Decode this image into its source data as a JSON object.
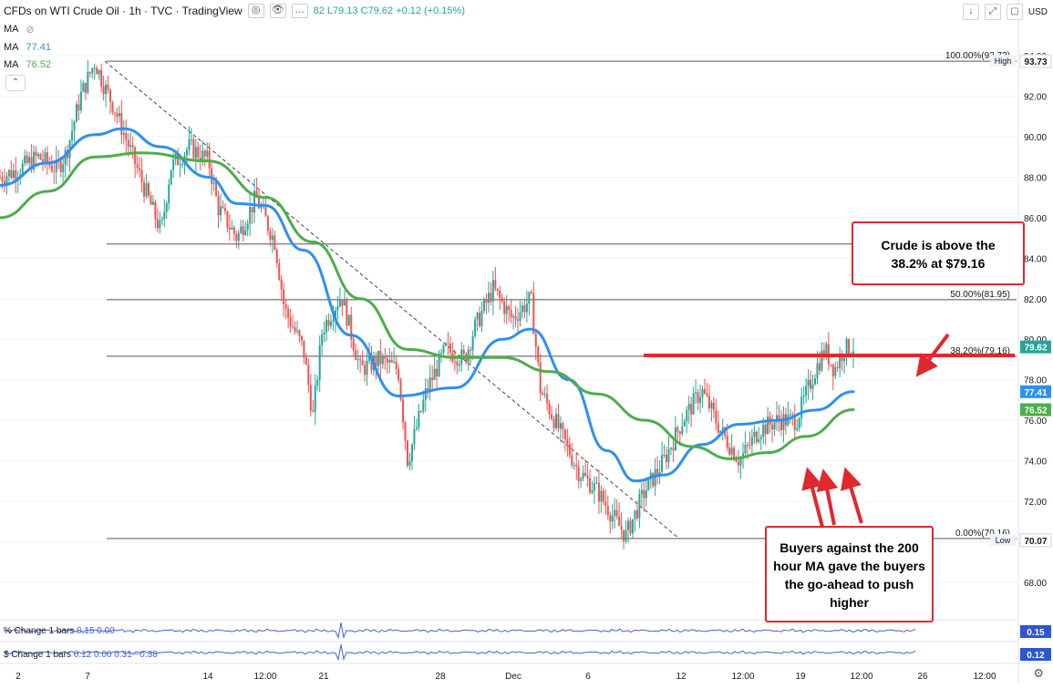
{
  "header": {
    "title": "CFDs on WTI Crude Oil · 1h · TVC · TradingView",
    "ohlc": "82  L79.13  C79.62  +0.12 (+0.15%)",
    "currency": "USD"
  },
  "legend": {
    "ma_label": "MA",
    "ma_blue_value": "77.41",
    "ma_green_value": "76.52"
  },
  "annotations": {
    "callout_top": "Crude is above the 38.2% at $79.16",
    "callout_bottom": "Buyers against the 200 hour MA gave the buyers the go-ahead to push higher",
    "fib_100": "100.00%(93.73)",
    "fib_50": "50.00%(81.95)",
    "fib_382": "38.20%(79.16)",
    "fib_0": "0.00%(70.16)",
    "high_tag": "High",
    "low_tag": "Low"
  },
  "indicators": {
    "pct_change_label": "% Change 1 bars",
    "pct_change_values": "0.15  0.00",
    "pct_change_value": "0.15",
    "dollar_change_label": "$ Change 1 bars",
    "dollar_change_values": "0.12  0.00  0.31  −0.38",
    "dollar_change_value": "0.12"
  },
  "colors": {
    "up": "#26a69a",
    "down": "#ef5350",
    "ma_fast": "#2e8ff0",
    "ma_slow": "#4cae4c",
    "annotation_red": "#e0282e",
    "axis_text": "#131722"
  },
  "chart_data": {
    "type": "candlestick",
    "symbol": "WTI Crude Oil",
    "interval": "1h",
    "ylim": [
      67.5,
      94.5
    ],
    "y_ticks": [
      "94.00",
      "92.00",
      "90.00",
      "88.00",
      "86.00",
      "84.00",
      "82.00",
      "80.00",
      "78.00",
      "76.00",
      "74.00",
      "72.00",
      "70.00",
      "68.00"
    ],
    "x_ticks": [
      "2",
      "7",
      "14",
      "12:00",
      "21",
      "28",
      "Dec",
      "6",
      "12",
      "12:00",
      "19",
      "12:00",
      "26",
      "12:00"
    ],
    "price_labels": {
      "high": "93.73",
      "last": "79.62",
      "ma_fast": "77.41",
      "ma_slow": "76.52",
      "low": "70.07"
    },
    "fib_levels": [
      {
        "label": "100.00%(93.73)",
        "price": 93.73
      },
      {
        "label": "",
        "price": 84.7
      },
      {
        "label": "50.00%(81.95)",
        "price": 81.95
      },
      {
        "label": "38.20%(79.16)",
        "price": 79.16
      },
      {
        "label": "0.00%(70.16)",
        "price": 70.16
      }
    ],
    "support_line_price": 79.2,
    "price_path": [
      [
        0,
        88.0
      ],
      [
        0.02,
        88.4
      ],
      [
        0.04,
        89.0
      ],
      [
        0.06,
        88.4
      ],
      [
        0.07,
        89.2
      ],
      [
        0.085,
        92.0
      ],
      [
        0.1,
        93.7
      ],
      [
        0.11,
        92.5
      ],
      [
        0.12,
        91.5
      ],
      [
        0.14,
        89.0
      ],
      [
        0.16,
        86.5
      ],
      [
        0.17,
        85.3
      ],
      [
        0.18,
        88.5
      ],
      [
        0.2,
        89.5
      ],
      [
        0.22,
        88.8
      ],
      [
        0.23,
        86.5
      ],
      [
        0.25,
        85.0
      ],
      [
        0.27,
        87.0
      ],
      [
        0.29,
        84.8
      ],
      [
        0.3,
        81.5
      ],
      [
        0.32,
        79.5
      ],
      [
        0.33,
        76.2
      ],
      [
        0.34,
        80.5
      ],
      [
        0.36,
        82.2
      ],
      [
        0.38,
        78.5
      ],
      [
        0.4,
        79.0
      ],
      [
        0.42,
        78.5
      ],
      [
        0.43,
        74.0
      ],
      [
        0.45,
        77.5
      ],
      [
        0.47,
        79.5
      ],
      [
        0.49,
        79.0
      ],
      [
        0.5,
        80.5
      ],
      [
        0.52,
        82.5
      ],
      [
        0.54,
        81.0
      ],
      [
        0.56,
        82.0
      ],
      [
        0.57,
        77.5
      ],
      [
        0.59,
        75.5
      ],
      [
        0.61,
        73.5
      ],
      [
        0.63,
        72.5
      ],
      [
        0.65,
        71.0
      ],
      [
        0.66,
        70.3
      ],
      [
        0.68,
        72.5
      ],
      [
        0.7,
        74.0
      ],
      [
        0.72,
        76.0
      ],
      [
        0.74,
        77.5
      ],
      [
        0.76,
        75.5
      ],
      [
        0.78,
        74.0
      ],
      [
        0.8,
        75.5
      ],
      [
        0.82,
        76.0
      ],
      [
        0.84,
        76.0
      ],
      [
        0.86,
        78.5
      ],
      [
        0.87,
        79.5
      ],
      [
        0.88,
        78.5
      ],
      [
        0.89,
        79.5
      ],
      [
        0.9,
        79.62
      ]
    ],
    "series": [
      {
        "name": "MA 77.41",
        "color": "#2e8ff0",
        "points": [
          [
            0,
            87.6
          ],
          [
            0.05,
            88.7
          ],
          [
            0.1,
            90.1
          ],
          [
            0.13,
            90.4
          ],
          [
            0.17,
            89.5
          ],
          [
            0.22,
            88.0
          ],
          [
            0.25,
            86.7
          ],
          [
            0.28,
            86.6
          ],
          [
            0.32,
            84.4
          ],
          [
            0.37,
            80.2
          ],
          [
            0.42,
            77.2
          ],
          [
            0.48,
            77.6
          ],
          [
            0.53,
            80.0
          ],
          [
            0.56,
            80.5
          ],
          [
            0.6,
            78.0
          ],
          [
            0.64,
            74.5
          ],
          [
            0.67,
            73.0
          ],
          [
            0.7,
            73.3
          ],
          [
            0.74,
            74.8
          ],
          [
            0.78,
            75.8
          ],
          [
            0.82,
            76.0
          ],
          [
            0.86,
            76.5
          ],
          [
            0.9,
            77.41
          ]
        ]
      },
      {
        "name": "MA 76.52",
        "color": "#4cae4c",
        "points": [
          [
            0,
            86.0
          ],
          [
            0.05,
            87.3
          ],
          [
            0.1,
            89.0
          ],
          [
            0.15,
            89.2
          ],
          [
            0.22,
            88.8
          ],
          [
            0.28,
            87.0
          ],
          [
            0.33,
            84.8
          ],
          [
            0.38,
            82.0
          ],
          [
            0.43,
            79.5
          ],
          [
            0.48,
            79.1
          ],
          [
            0.53,
            79.1
          ],
          [
            0.58,
            78.4
          ],
          [
            0.63,
            77.3
          ],
          [
            0.68,
            76.0
          ],
          [
            0.73,
            74.7
          ],
          [
            0.77,
            74.1
          ],
          [
            0.81,
            74.4
          ],
          [
            0.85,
            75.2
          ],
          [
            0.9,
            76.52
          ]
        ]
      }
    ]
  }
}
